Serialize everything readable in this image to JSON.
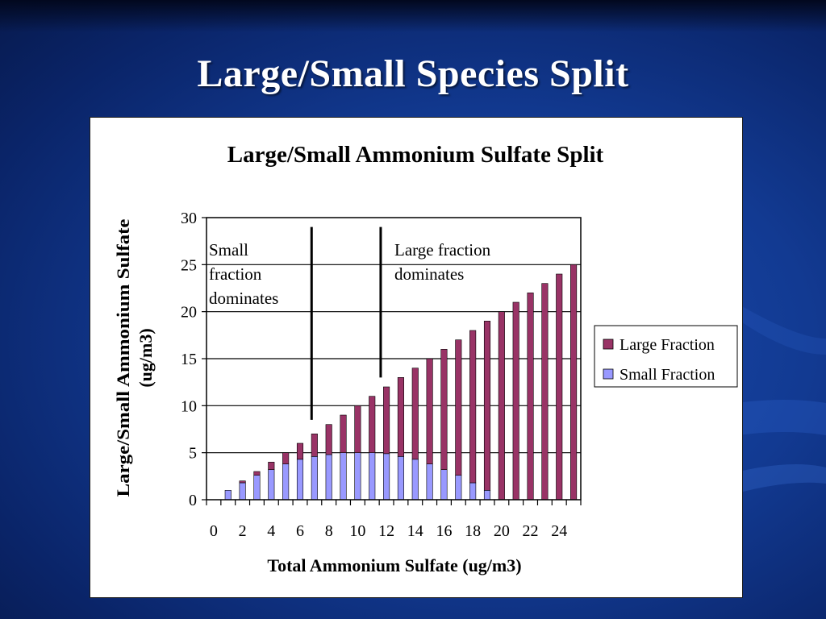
{
  "slide": {
    "title": "Large/Small Species Split"
  },
  "colors": {
    "background": "#123a92",
    "large_fraction": "#993366",
    "small_fraction": "#9999ff",
    "annotation_line": "#000000"
  },
  "chart_data": {
    "type": "bar",
    "stacked": true,
    "title": "Large/Small Ammonium Sulfate Split",
    "xlabel": "Total Ammonium Sulfate (ug/m3)",
    "ylabel_lines": [
      "Large/Small Ammonium Sulfate",
      "(ug/m3)"
    ],
    "ylim": [
      0,
      30
    ],
    "yticks": [
      0,
      5,
      10,
      15,
      20,
      25,
      30
    ],
    "xticks": [
      0,
      2,
      4,
      6,
      8,
      10,
      12,
      14,
      16,
      18,
      20,
      22,
      24
    ],
    "x": [
      1,
      2,
      3,
      4,
      5,
      6,
      7,
      8,
      9,
      10,
      11,
      12,
      13,
      14,
      15,
      16,
      17,
      18,
      19,
      20,
      21,
      22,
      23,
      24,
      25
    ],
    "series": [
      {
        "name": "Small Fraction",
        "color": "#9999ff",
        "values": [
          1.0,
          1.8,
          2.6,
          3.2,
          3.8,
          4.3,
          4.6,
          4.8,
          5.0,
          5.0,
          5.0,
          4.9,
          4.6,
          4.3,
          3.8,
          3.2,
          2.6,
          1.8,
          1.0,
          0,
          0,
          0,
          0,
          0,
          0
        ]
      },
      {
        "name": "Large Fraction",
        "color": "#993366",
        "values": [
          0,
          0.2,
          0.4,
          0.8,
          1.2,
          1.7,
          2.4,
          3.2,
          4.0,
          5.0,
          6.0,
          7.1,
          8.4,
          9.7,
          11.2,
          12.8,
          14.4,
          16.2,
          18.0,
          20,
          21,
          22,
          23,
          24,
          25
        ]
      }
    ],
    "legend": {
      "position": "right",
      "entries": [
        "Large Fraction",
        "Small Fraction"
      ]
    },
    "annotations": [
      {
        "text_lines": [
          "Small",
          "fraction",
          "dominates"
        ],
        "x_line": 6.8,
        "y_top": 29,
        "y_bottom": 8.5
      },
      {
        "text_lines": [
          "Large fraction",
          "dominates"
        ],
        "x_line": 11.6,
        "y_top": 29,
        "y_bottom": 13
      }
    ],
    "grid": true
  }
}
